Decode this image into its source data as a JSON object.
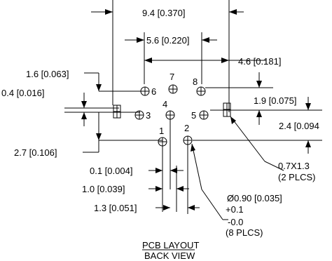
{
  "dimensions": {
    "overall_width": "9.4 [0.370]",
    "inner_width": "5.6 [0.220]",
    "right_offset": "4.6 [0.181]",
    "left_vertical_1": "1.6 [0.063]",
    "left_vertical_2": "0.4 [0.016]",
    "left_vertical_3": "2.7 [0.106]",
    "right_vertical_1": "1.9 [0.075]",
    "right_vertical_2": "2.4 [0.094",
    "bottom_1": "0.1 [0.004]",
    "bottom_2": "1.0 [0.039]",
    "bottom_3": "1.3 [0.051]",
    "slot_note_line1": "0.7X1.3",
    "slot_note_line2": "(2 PLCS)",
    "hole_note_line1": "Ø0.90 [0.035]",
    "hole_note_line2": "+0.1",
    "hole_note_line3": "-0.0",
    "hole_note_line4": "(8 PLCS)"
  },
  "pins": [
    "1",
    "2",
    "3",
    "4",
    "5",
    "6",
    "7",
    "8"
  ],
  "title": {
    "line1": "PCB LAYOUT",
    "line2": "BACK VIEW"
  }
}
